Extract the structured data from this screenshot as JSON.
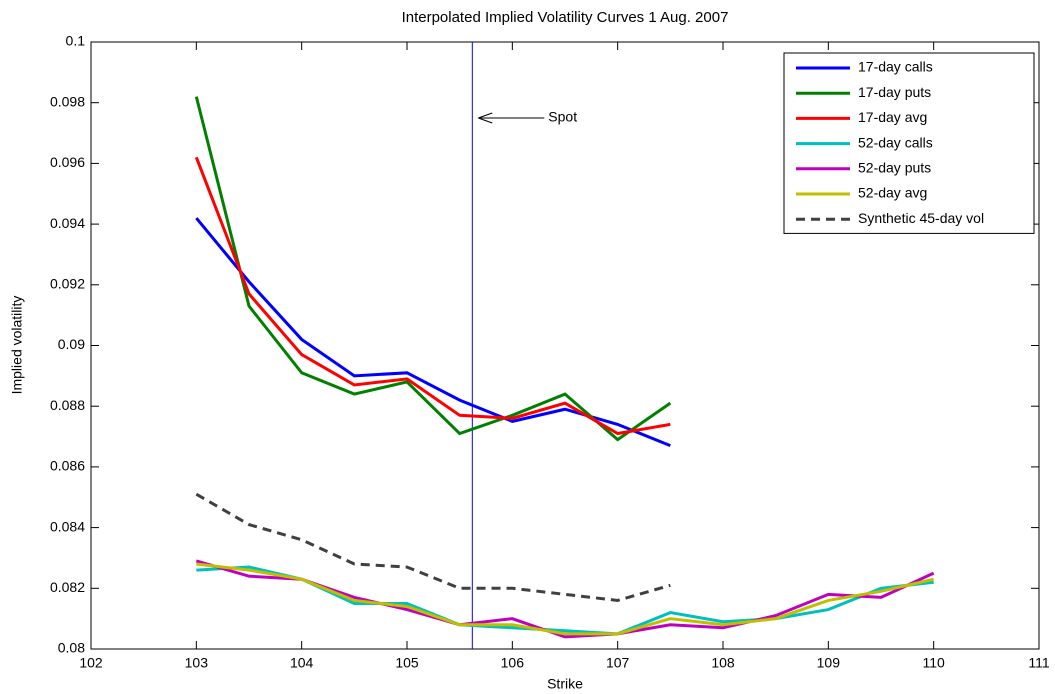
{
  "chart_data": {
    "type": "line",
    "title": "Interpolated Implied Volatility Curves 1 Aug. 2007",
    "x_label": "Strike",
    "y_label": "Implied volatility",
    "xlim": [
      102,
      111
    ],
    "xticks": [
      102,
      103,
      104,
      105,
      106,
      107,
      108,
      109,
      110,
      111
    ],
    "ylim": [
      0.08,
      0.1
    ],
    "yticks": [
      0.08,
      0.082,
      0.084,
      0.086,
      0.088,
      0.09,
      0.092,
      0.094,
      0.096,
      0.098,
      0.1
    ],
    "grid": false,
    "legend": "upper right",
    "annotation": {
      "text": "Spot",
      "x": 105.62,
      "color": "#0000ff"
    },
    "series": [
      {
        "name": "17-day calls",
        "color": "#0000ff",
        "x": [
          103,
          103.5,
          104,
          104.5,
          105,
          105.5,
          106,
          106.5,
          107,
          107.5
        ],
        "values": [
          0.0942,
          0.0921,
          0.0902,
          0.089,
          0.0891,
          0.0882,
          0.0875,
          0.0879,
          0.0874,
          0.0867
        ]
      },
      {
        "name": "17-day puts",
        "color": "#008000",
        "x": [
          103,
          103.5,
          104,
          104.5,
          105,
          105.5,
          106,
          106.5,
          107,
          107.5
        ],
        "values": [
          0.0982,
          0.0913,
          0.0891,
          0.0884,
          0.0888,
          0.0871,
          0.0877,
          0.0884,
          0.0869,
          0.0881
        ]
      },
      {
        "name": "17-day avg",
        "color": "#ff0000",
        "x": [
          103,
          103.5,
          104,
          104.5,
          105,
          105.5,
          106,
          106.5,
          107,
          107.5
        ],
        "values": [
          0.0962,
          0.0917,
          0.0897,
          0.0887,
          0.0889,
          0.0877,
          0.0876,
          0.0881,
          0.0871,
          0.0874
        ]
      },
      {
        "name": "52-day calls",
        "color": "#00bfbf",
        "x": [
          103,
          103.5,
          104,
          104.5,
          105,
          105.5,
          106,
          106.5,
          107,
          107.5,
          108,
          108.5,
          109,
          109.5,
          110
        ],
        "values": [
          0.0826,
          0.0827,
          0.0823,
          0.0815,
          0.0815,
          0.0808,
          0.0807,
          0.0806,
          0.0805,
          0.0812,
          0.0809,
          0.081,
          0.0813,
          0.082,
          0.0822
        ]
      },
      {
        "name": "52-day puts",
        "color": "#bf00bf",
        "x": [
          103,
          103.5,
          104,
          104.5,
          105,
          105.5,
          106,
          106.5,
          107,
          107.5,
          108,
          108.5,
          109,
          109.5,
          110
        ],
        "values": [
          0.0829,
          0.0824,
          0.0823,
          0.0817,
          0.0813,
          0.0808,
          0.081,
          0.0804,
          0.0805,
          0.0808,
          0.0807,
          0.0811,
          0.0818,
          0.0817,
          0.0825
        ]
      },
      {
        "name": "52-day avg",
        "color": "#bfbf00",
        "x": [
          103,
          103.5,
          104,
          104.5,
          105,
          105.5,
          106,
          106.5,
          107,
          107.5,
          108,
          108.5,
          109,
          109.5,
          110
        ],
        "values": [
          0.0828,
          0.0826,
          0.0823,
          0.0816,
          0.0814,
          0.0808,
          0.0808,
          0.0805,
          0.0805,
          0.081,
          0.0808,
          0.081,
          0.0816,
          0.0819,
          0.0823
        ]
      },
      {
        "name": "Synthetic 45-day vol",
        "color": "#404040",
        "dash": true,
        "x": [
          103,
          103.5,
          104,
          104.5,
          105,
          105.5,
          106,
          106.5,
          107,
          107.5
        ],
        "values": [
          0.0851,
          0.0841,
          0.0836,
          0.0828,
          0.0827,
          0.082,
          0.082,
          0.0818,
          0.0816,
          0.0821
        ]
      }
    ]
  }
}
